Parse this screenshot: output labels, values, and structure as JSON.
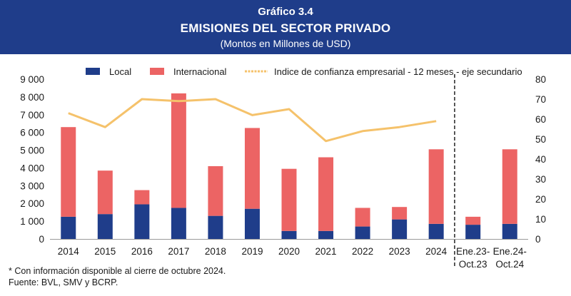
{
  "header": {
    "chart_number": "Gráfico 3.4",
    "title": "EMISIONES DEL SECTOR PRIVADO",
    "subtitle": "(Montos en Millones de USD)"
  },
  "notes": {
    "footnote": "* Con información disponible al cierre de octubre 2024.",
    "source": "Fuente: BVL, SMV y BCRP."
  },
  "colors": {
    "local": "#1f3d8a",
    "internacional": "#ec6464",
    "indice": "#f5c26b",
    "header_bg": "#1f3d8a"
  },
  "chart_data": {
    "type": "bar",
    "stacked": true,
    "categories": [
      "2014",
      "2015",
      "2016",
      "2017",
      "2018",
      "2019",
      "2020",
      "2021",
      "2022",
      "2023",
      "2024",
      "Ene.23-\nOct.23",
      "Ene.24-\nOct.24"
    ],
    "series": [
      {
        "name": "Local",
        "values": [
          1250,
          1400,
          1950,
          1750,
          1300,
          1700,
          450,
          450,
          700,
          1100,
          850,
          800,
          850
        ]
      },
      {
        "name": "Internacional",
        "values": [
          5050,
          2450,
          800,
          6450,
          2800,
          4550,
          3500,
          4150,
          1050,
          700,
          4200,
          450,
          4200
        ]
      }
    ],
    "line_series": {
      "name": "Indice de confianza empresarial - 12 meses - eje secundario",
      "axis": "secondary",
      "values": [
        63,
        56,
        70,
        69,
        70,
        62,
        65,
        49,
        54,
        56,
        59,
        null,
        null
      ]
    },
    "yticks": [
      "0",
      "1 000",
      "2 000",
      "3 000",
      "4 000",
      "5 000",
      "6 000",
      "7 000",
      "8 000",
      "9 000"
    ],
    "y2ticks": [
      "0",
      "10",
      "20",
      "30",
      "40",
      "50",
      "60",
      "70",
      "80"
    ],
    "ylim": [
      0,
      9000
    ],
    "y2lim": [
      0,
      80
    ],
    "divider_after_category": "2024",
    "legend_position": "top"
  }
}
